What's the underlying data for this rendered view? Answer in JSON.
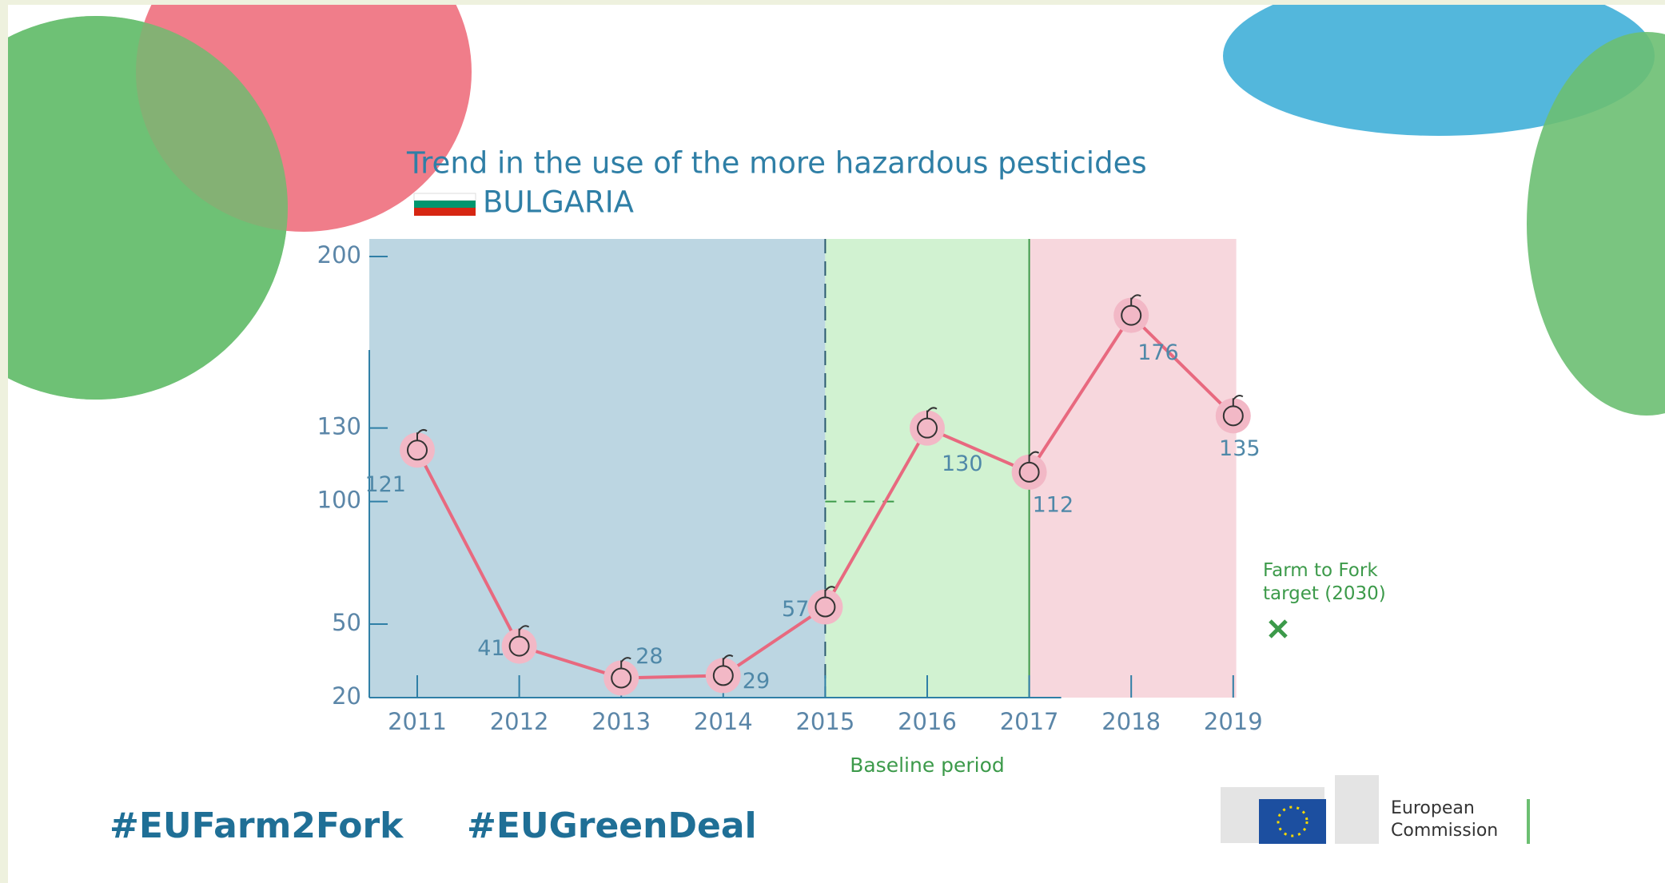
{
  "chart_data": {
    "type": "line",
    "title": "Trend in the use of the more hazardous pesticides",
    "subtitle": "BULGARIA",
    "categories": [
      "2011",
      "2012",
      "2013",
      "2014",
      "2015",
      "2016",
      "2017",
      "2018",
      "2019"
    ],
    "values": [
      121,
      41,
      28,
      29,
      57,
      130,
      112,
      176,
      135
    ],
    "color": "#e8697f",
    "ylim": [
      20,
      200
    ],
    "yticks": [
      20,
      50,
      100,
      130,
      200
    ],
    "band_label": "Baseline period",
    "target": {
      "label": "Farm to Fork target (2030)",
      "value": 50
    }
  },
  "footer": {
    "hashtags": [
      "#EUFarm2Fork",
      "#EUGreenDeal"
    ],
    "logo": "European Commission"
  }
}
